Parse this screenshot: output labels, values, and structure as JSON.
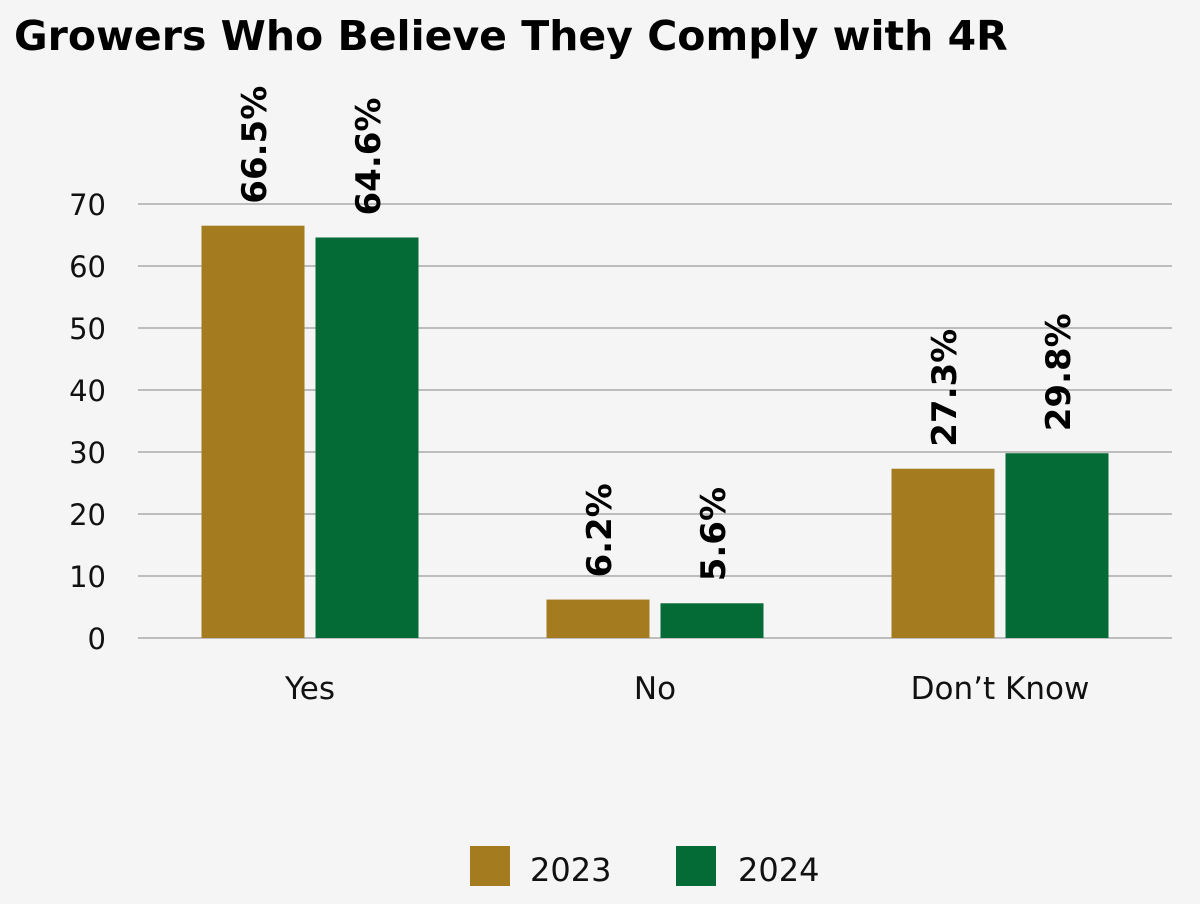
{
  "chart_data": {
    "type": "bar",
    "title": "Growers Who Believe They Comply with 4R",
    "xlabel": "",
    "ylabel": "",
    "categories": [
      "Yes",
      "No",
      "Don’t Know"
    ],
    "series": [
      {
        "name": "2023",
        "values": [
          66.5,
          6.2,
          27.3
        ],
        "labels": [
          "66.5%",
          "6.2%",
          "27.3%"
        ],
        "color": "#a57b1f"
      },
      {
        "name": "2024",
        "values": [
          64.6,
          5.6,
          29.8
        ],
        "labels": [
          "64.6%",
          "5.6%",
          "29.8%"
        ],
        "color": "#056b36"
      }
    ],
    "yticks": [
      0,
      10,
      20,
      30,
      40,
      50,
      60,
      70
    ],
    "ylim": [
      0,
      70
    ],
    "grid": true,
    "legend_position": "bottom"
  }
}
